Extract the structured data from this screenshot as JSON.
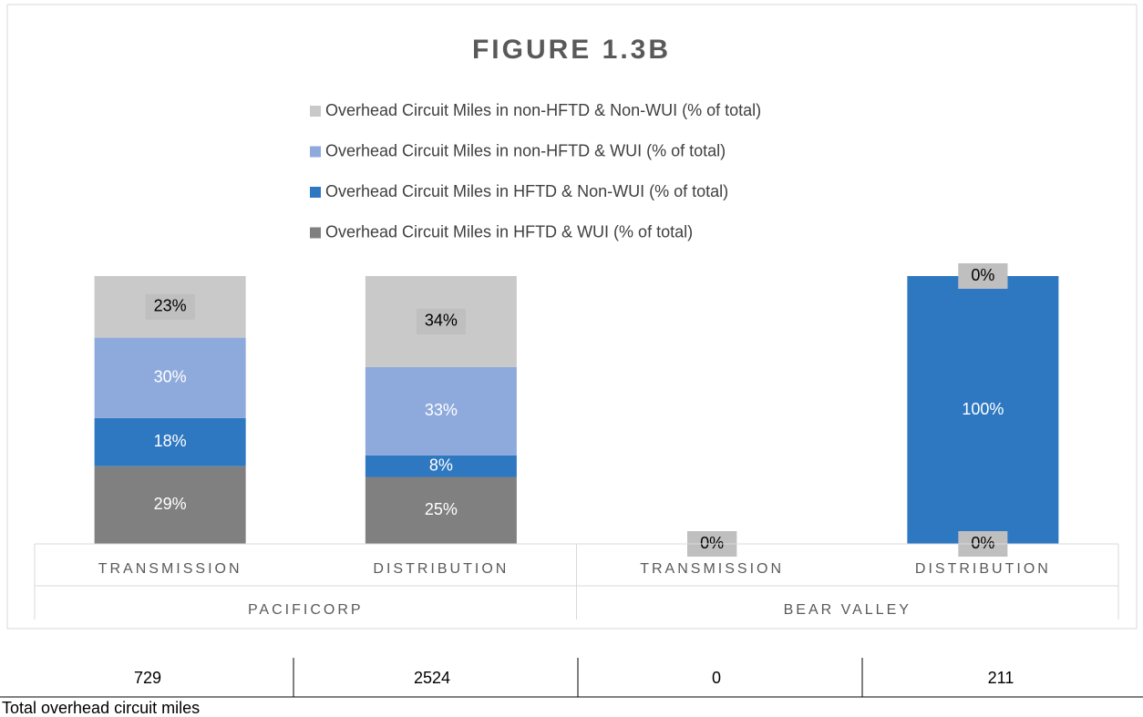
{
  "chart_data": {
    "type": "stacked_bar",
    "title": "FIGURE 1.3B",
    "categories": [
      "TRANSMISSION",
      "DISTRIBUTION",
      "TRANSMISSION",
      "DISTRIBUTION"
    ],
    "groups": [
      "PACIFICORP",
      "BEAR VALLEY"
    ],
    "ylim": [
      0,
      100
    ],
    "series": [
      {
        "name": "Overhead Circuit Miles in HFTD & WUI (% of total)",
        "color": "#808080",
        "values": [
          29,
          25,
          0,
          0
        ],
        "value_labels": [
          "29%",
          "25%",
          "0%",
          "0%"
        ]
      },
      {
        "name": "Overhead Circuit Miles in HFTD & Non-WUI (% of total)",
        "color": "#2e78c2",
        "values": [
          18,
          8,
          0,
          100
        ],
        "value_labels": [
          "18%",
          "8%",
          "0%",
          "100%"
        ]
      },
      {
        "name": "Overhead Circuit Miles in non-HFTD & WUI (% of total)",
        "color": "#8eaadc",
        "values": [
          30,
          33,
          0,
          0
        ],
        "value_labels": [
          "30%",
          "33%",
          "0%",
          "0%"
        ]
      },
      {
        "name": "Overhead Circuit Miles in non-HFTD & Non-WUI (% of total)",
        "color": "#c9c9c9",
        "values": [
          23,
          34,
          0,
          0
        ],
        "value_labels": [
          "23%",
          "34%",
          "0%",
          "0%"
        ]
      }
    ]
  },
  "table": {
    "row": [
      "729",
      "2524",
      "0",
      "211"
    ],
    "caption": "Total overhead circuit miles"
  }
}
